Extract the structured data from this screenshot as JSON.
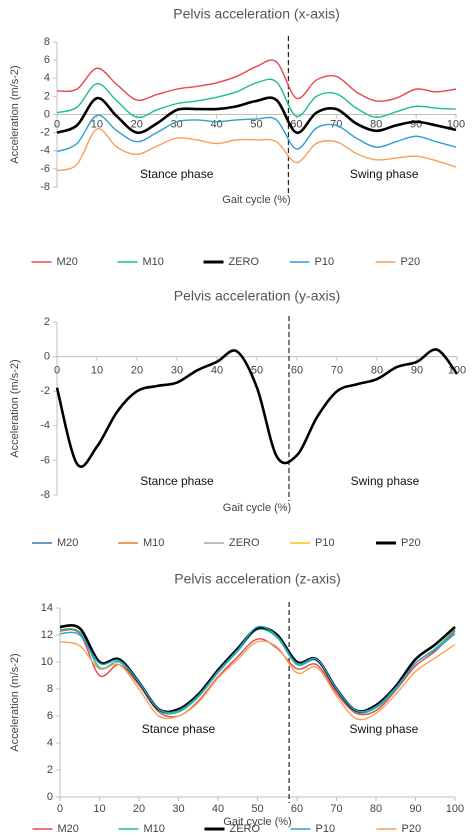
{
  "chart_data": [
    {
      "type": "line",
      "title": "Pelvis acceleration (x-axis)",
      "x_label": "Gait cycle (%)",
      "y_label": "Acceleration (m/s-2)",
      "annotations": [
        "Stance phase",
        "Swing phase"
      ],
      "vline": 58,
      "xlim": [
        0,
        100
      ],
      "xticks": [
        0,
        10,
        20,
        30,
        40,
        50,
        60,
        70,
        80,
        90,
        100
      ],
      "ylim": [
        -8,
        8
      ],
      "yticks": [
        -8,
        -6,
        -4,
        -2,
        0,
        2,
        4,
        6,
        8
      ],
      "grid": false,
      "x": [
        0,
        5,
        10,
        15,
        20,
        25,
        30,
        35,
        40,
        45,
        50,
        55,
        60,
        65,
        70,
        75,
        80,
        85,
        90,
        95,
        100
      ],
      "series": [
        {
          "name": "M20",
          "color": "#e8474a",
          "values": [
            2.6,
            2.8,
            5.1,
            3.3,
            1.6,
            2.2,
            2.8,
            3.1,
            3.5,
            4.2,
            5.3,
            5.8,
            1.8,
            3.8,
            4.2,
            2.5,
            1.5,
            1.8,
            2.8,
            2.5,
            2.8
          ]
        },
        {
          "name": "M10",
          "color": "#1fbf8a",
          "values": [
            0.2,
            0.8,
            3.4,
            1.5,
            -0.3,
            0.5,
            1.2,
            1.5,
            1.9,
            2.5,
            3.5,
            3.6,
            -0.2,
            2.0,
            2.3,
            0.7,
            -0.3,
            0.3,
            0.9,
            0.7,
            0.6
          ]
        },
        {
          "name": "ZERO",
          "color": "#000000",
          "values": [
            -2,
            -1.2,
            1.8,
            -0.2,
            -2,
            -1,
            0.5,
            0.6,
            0.6,
            0.9,
            1.5,
            1.6,
            -2,
            0.2,
            0.6,
            -1,
            -1.8,
            -1.2,
            -0.8,
            -1.2,
            -1.7
          ]
        },
        {
          "name": "P10",
          "color": "#2a9fd0",
          "values": [
            -4.1,
            -3.2,
            -0.1,
            -1.8,
            -3,
            -2,
            -0.8,
            -0.6,
            -0.8,
            -0.6,
            -0.5,
            -0.6,
            -3.8,
            -1.5,
            -1.2,
            -2.6,
            -3.6,
            -3,
            -2.4,
            -3,
            -3.6
          ]
        },
        {
          "name": "P20",
          "color": "#f5a15e",
          "values": [
            -6.2,
            -5.5,
            -1.6,
            -3.6,
            -4.4,
            -3.5,
            -2.6,
            -2.8,
            -3.2,
            -2.8,
            -2.8,
            -3.0,
            -5.3,
            -3.2,
            -3.0,
            -4.3,
            -5,
            -4.8,
            -4.6,
            -5.1,
            -5.8
          ]
        }
      ]
    },
    {
      "type": "line",
      "title": "Pelvis acceleration (y-axis)",
      "x_label": "Gait cycle (%)",
      "y_label": "Acceleration (m/s-2)",
      "annotations": [
        "Stance phase",
        "Swing phase"
      ],
      "vline": 58,
      "xlim": [
        0,
        100
      ],
      "xticks": [
        0,
        10,
        20,
        30,
        40,
        50,
        60,
        70,
        80,
        90,
        100
      ],
      "ylim": [
        -8,
        2
      ],
      "yticks": [
        -8,
        -6,
        -4,
        -2,
        0,
        2
      ],
      "grid": false,
      "x": [
        0,
        5,
        10,
        15,
        20,
        25,
        30,
        35,
        40,
        45,
        50,
        55,
        60,
        65,
        70,
        75,
        80,
        85,
        90,
        95,
        100
      ],
      "series": [
        {
          "name": "M20",
          "color": "#2e75b6",
          "values": [
            -1.8,
            -6.2,
            -5.2,
            -3.2,
            -2,
            -1.7,
            -1.5,
            -0.8,
            -0.3,
            0.3,
            -1.8,
            -5.8,
            -5.7,
            -3.5,
            -2,
            -1.6,
            -1.3,
            -0.6,
            -0.3,
            0.4,
            -1.0
          ]
        },
        {
          "name": "M10",
          "color": "#ed7d31",
          "values": [
            -1.8,
            -6.2,
            -5.2,
            -3.2,
            -2,
            -1.7,
            -1.5,
            -0.8,
            -0.3,
            0.3,
            -1.8,
            -5.8,
            -5.7,
            -3.5,
            -2,
            -1.6,
            -1.3,
            -0.6,
            -0.3,
            0.4,
            -1.0
          ]
        },
        {
          "name": "ZERO",
          "color": "#a5a5a5",
          "values": [
            -1.8,
            -6.2,
            -5.2,
            -3.2,
            -2,
            -1.7,
            -1.5,
            -0.8,
            -0.3,
            0.3,
            -1.8,
            -5.8,
            -5.7,
            -3.5,
            -2,
            -1.6,
            -1.3,
            -0.6,
            -0.3,
            0.4,
            -1.0
          ]
        },
        {
          "name": "P10",
          "color": "#ffc000",
          "values": [
            -1.8,
            -6.2,
            -5.2,
            -3.2,
            -2,
            -1.7,
            -1.5,
            -0.8,
            -0.3,
            0.3,
            -1.8,
            -5.8,
            -5.7,
            -3.5,
            -2,
            -1.6,
            -1.3,
            -0.6,
            -0.3,
            0.4,
            -1.0
          ]
        },
        {
          "name": "P20",
          "color": "#000000",
          "values": [
            -1.8,
            -6.2,
            -5.2,
            -3.2,
            -2,
            -1.7,
            -1.5,
            -0.8,
            -0.3,
            0.3,
            -1.8,
            -5.8,
            -5.7,
            -3.5,
            -2,
            -1.6,
            -1.3,
            -0.6,
            -0.3,
            0.4,
            -1.0
          ]
        }
      ]
    },
    {
      "type": "line",
      "title": "Pelvis acceleration (z-axis)",
      "x_label": "Gait cycle (%)",
      "y_label": "Acceleration (m/s-2)",
      "annotations": [
        "Stance phase",
        "Swing phase"
      ],
      "vline": 58,
      "xlim": [
        0,
        100
      ],
      "xticks": [
        0,
        10,
        20,
        30,
        40,
        50,
        60,
        70,
        80,
        90,
        100
      ],
      "ylim": [
        0,
        14
      ],
      "yticks": [
        0,
        2,
        4,
        6,
        8,
        10,
        12,
        14
      ],
      "grid": false,
      "x": [
        0,
        5,
        10,
        15,
        20,
        25,
        30,
        35,
        40,
        45,
        50,
        55,
        60,
        65,
        70,
        75,
        80,
        85,
        90,
        95,
        100
      ],
      "series": [
        {
          "name": "M20",
          "color": "#e8474a",
          "values": [
            12.3,
            12.1,
            9.0,
            9.8,
            8.3,
            6.3,
            6.0,
            7.1,
            8.9,
            10.4,
            11.7,
            11.0,
            9.5,
            9.8,
            7.7,
            6.2,
            6.4,
            7.9,
            9.7,
            10.8,
            12.3
          ]
        },
        {
          "name": "M10",
          "color": "#1fbf8a",
          "values": [
            12.4,
            12.2,
            9.6,
            10,
            8.4,
            6.4,
            6.3,
            7.4,
            9.2,
            10.8,
            12.4,
            11.8,
            9.8,
            10.1,
            7.9,
            6.3,
            6.6,
            8.0,
            9.9,
            11.0,
            12.4
          ]
        },
        {
          "name": "ZERO",
          "color": "#000000",
          "values": [
            12.6,
            12.5,
            10,
            10.2,
            8.5,
            6.5,
            6.5,
            7.6,
            9.4,
            11,
            12.5,
            12,
            10,
            10.2,
            8,
            6.4,
            6.8,
            8.2,
            10.2,
            11.3,
            12.6
          ]
        },
        {
          "name": "P10",
          "color": "#2a9fd0",
          "values": [
            12.1,
            12.0,
            9.9,
            10.1,
            8.5,
            6.5,
            6.4,
            7.5,
            9.3,
            10.9,
            12.6,
            11.9,
            9.9,
            10.2,
            8.0,
            6.4,
            6.7,
            8.1,
            9.9,
            10.9,
            12.1
          ]
        },
        {
          "name": "P20",
          "color": "#f5a15e",
          "values": [
            11.5,
            11.2,
            9.5,
            9.8,
            8.0,
            6.0,
            6.0,
            7.0,
            8.8,
            10.2,
            11.5,
            11.1,
            9.2,
            9.6,
            7.5,
            5.8,
            6.2,
            7.6,
            9.3,
            10.3,
            11.3
          ]
        }
      ]
    }
  ]
}
